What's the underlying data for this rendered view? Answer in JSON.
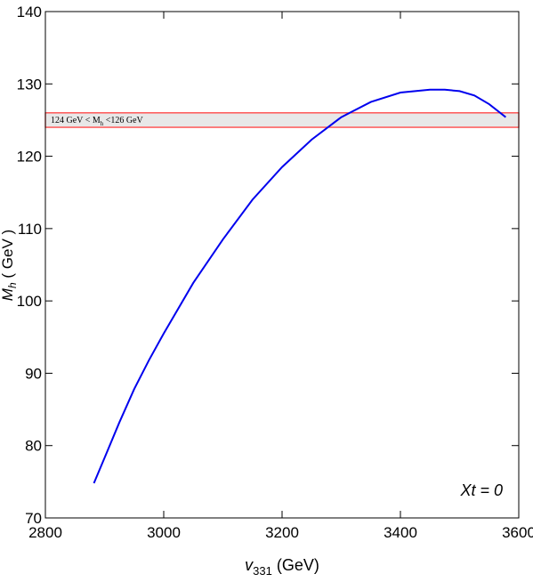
{
  "chart_data": {
    "type": "line",
    "x_label": {
      "main": "v",
      "sub": "331",
      "rest": " (GeV)"
    },
    "y_label": {
      "main": "M",
      "sub": "h",
      "rest": " ( GeV )"
    },
    "annotation": "Xt = 0",
    "band": {
      "range": [
        124,
        126
      ],
      "label_before": "124 GeV < M",
      "label_sub": "h",
      "label_after": " <126 GeV",
      "edge_color": "#ff4040",
      "fill_color": "#e8e8e8"
    },
    "xlim": [
      2800,
      3600
    ],
    "xticks": [
      2800,
      3000,
      3200,
      3400,
      3600
    ],
    "ylim": [
      70,
      140
    ],
    "yticks": [
      70,
      80,
      90,
      100,
      110,
      120,
      130,
      140
    ],
    "series": [
      {
        "color": "#0000ee",
        "x": [
          2882,
          2900,
          2925,
          2950,
          2975,
          3000,
          3050,
          3100,
          3150,
          3200,
          3250,
          3300,
          3350,
          3400,
          3450,
          3475,
          3500,
          3525,
          3550,
          3578
        ],
        "values": [
          74.8,
          78.3,
          83.2,
          87.8,
          91.8,
          95.5,
          102.5,
          108.5,
          114.0,
          118.5,
          122.3,
          125.4,
          127.5,
          128.8,
          129.2,
          129.2,
          129.0,
          128.4,
          127.2,
          125.4
        ]
      }
    ]
  }
}
